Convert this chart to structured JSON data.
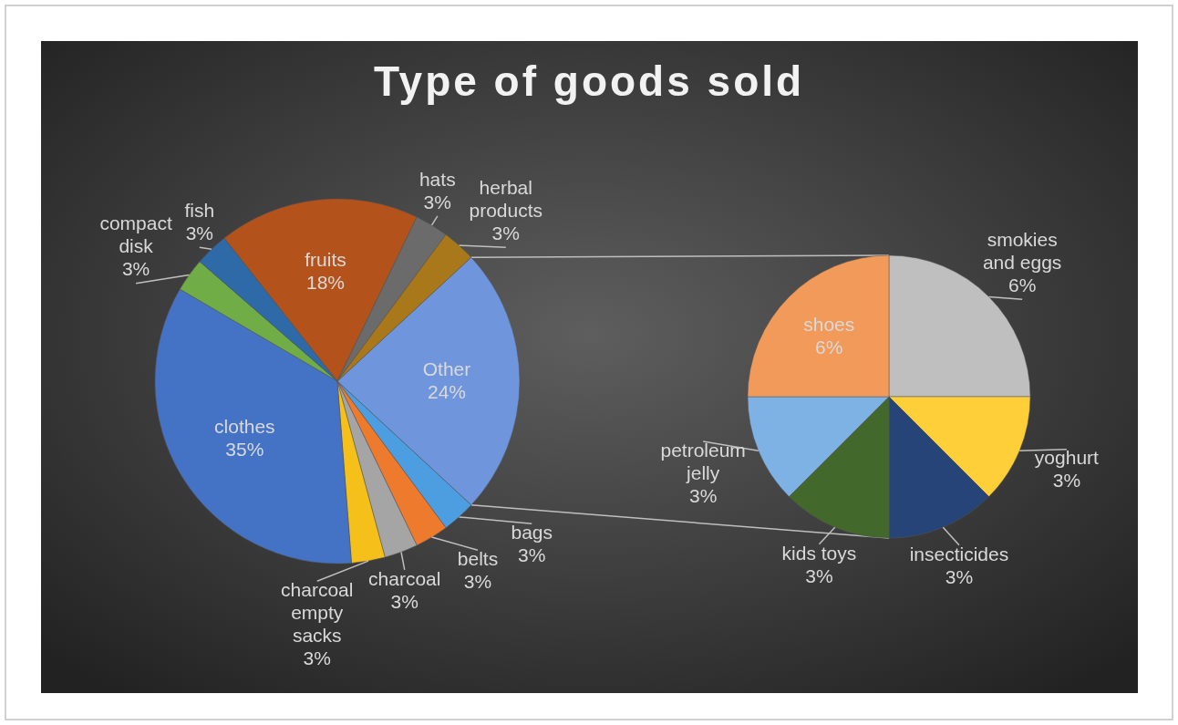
{
  "chart_data": [
    {
      "type": "pie",
      "title": "Type of goods sold",
      "categories": [
        "Other",
        "bags",
        "belts",
        "charcoal",
        "charcoal empty sacks",
        "clothes",
        "compact disk",
        "fish",
        "fruits",
        "hats",
        "herbal products"
      ],
      "values": [
        24,
        3,
        3,
        3,
        3,
        35,
        3,
        3,
        18,
        3,
        3
      ],
      "value_labels": [
        "24%",
        "3%",
        "3%",
        "3%",
        "3%",
        "35%",
        "3%",
        "3%",
        "18%",
        "3%",
        "3%"
      ],
      "colors": [
        "#6f95dc",
        "#4d9ee0",
        "#ee7a2e",
        "#a5a5a5",
        "#f5c01a",
        "#4472c4",
        "#70ad47",
        "#2e6aa8",
        "#b4521c",
        "#6b6b6b",
        "#a8781a"
      ]
    },
    {
      "type": "pie",
      "categories": [
        "smokies and eggs",
        "yoghurt",
        "insecticides",
        "kids toys",
        "petroleum jelly",
        "shoes"
      ],
      "values": [
        6,
        3,
        3,
        3,
        3,
        6
      ],
      "value_labels": [
        "6%",
        "3%",
        "3%",
        "3%",
        "3%",
        "6%"
      ],
      "colors": [
        "#bfbfbf",
        "#ffcf3a",
        "#264478",
        "#43682b",
        "#7eb2e4",
        "#f19a5a"
      ]
    }
  ]
}
